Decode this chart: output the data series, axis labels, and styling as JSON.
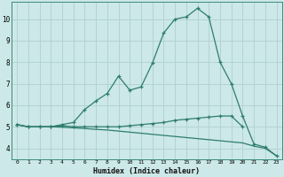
{
  "xlabel": "Humidex (Indice chaleur)",
  "x_values": [
    0,
    1,
    2,
    3,
    4,
    5,
    6,
    7,
    8,
    9,
    10,
    11,
    12,
    13,
    14,
    15,
    16,
    17,
    18,
    19,
    20,
    21,
    22,
    23
  ],
  "line1": [
    5.1,
    5.0,
    5.0,
    5.0,
    5.1,
    5.2,
    5.8,
    6.2,
    6.55,
    7.35,
    6.7,
    6.85,
    7.95,
    9.35,
    10.0,
    10.1,
    10.5,
    10.1,
    8.0,
    7.0,
    5.5,
    4.2,
    4.05,
    3.65
  ],
  "line2": [
    5.1,
    5.0,
    5.0,
    5.0,
    5.05,
    5.0,
    5.0,
    5.0,
    5.0,
    5.0,
    5.05,
    5.1,
    5.15,
    5.2,
    5.3,
    5.35,
    5.4,
    5.45,
    5.5,
    5.5,
    5.0,
    null,
    null,
    null
  ],
  "line3": [
    5.1,
    5.0,
    5.0,
    5.0,
    4.98,
    4.95,
    4.92,
    4.88,
    4.85,
    4.8,
    4.75,
    4.7,
    4.65,
    4.6,
    4.55,
    4.5,
    4.45,
    4.4,
    4.35,
    4.3,
    4.25,
    4.1,
    4.0,
    3.65
  ],
  "line_color": "#2e7d6e",
  "background_color": "#cce8e8",
  "grid_color": "#b0d0d0",
  "ylim": [
    3.5,
    10.8
  ],
  "yticks": [
    4,
    5,
    6,
    7,
    8,
    9,
    10
  ],
  "marker": "+",
  "figsize": [
    3.2,
    2.0
  ],
  "dpi": 100
}
